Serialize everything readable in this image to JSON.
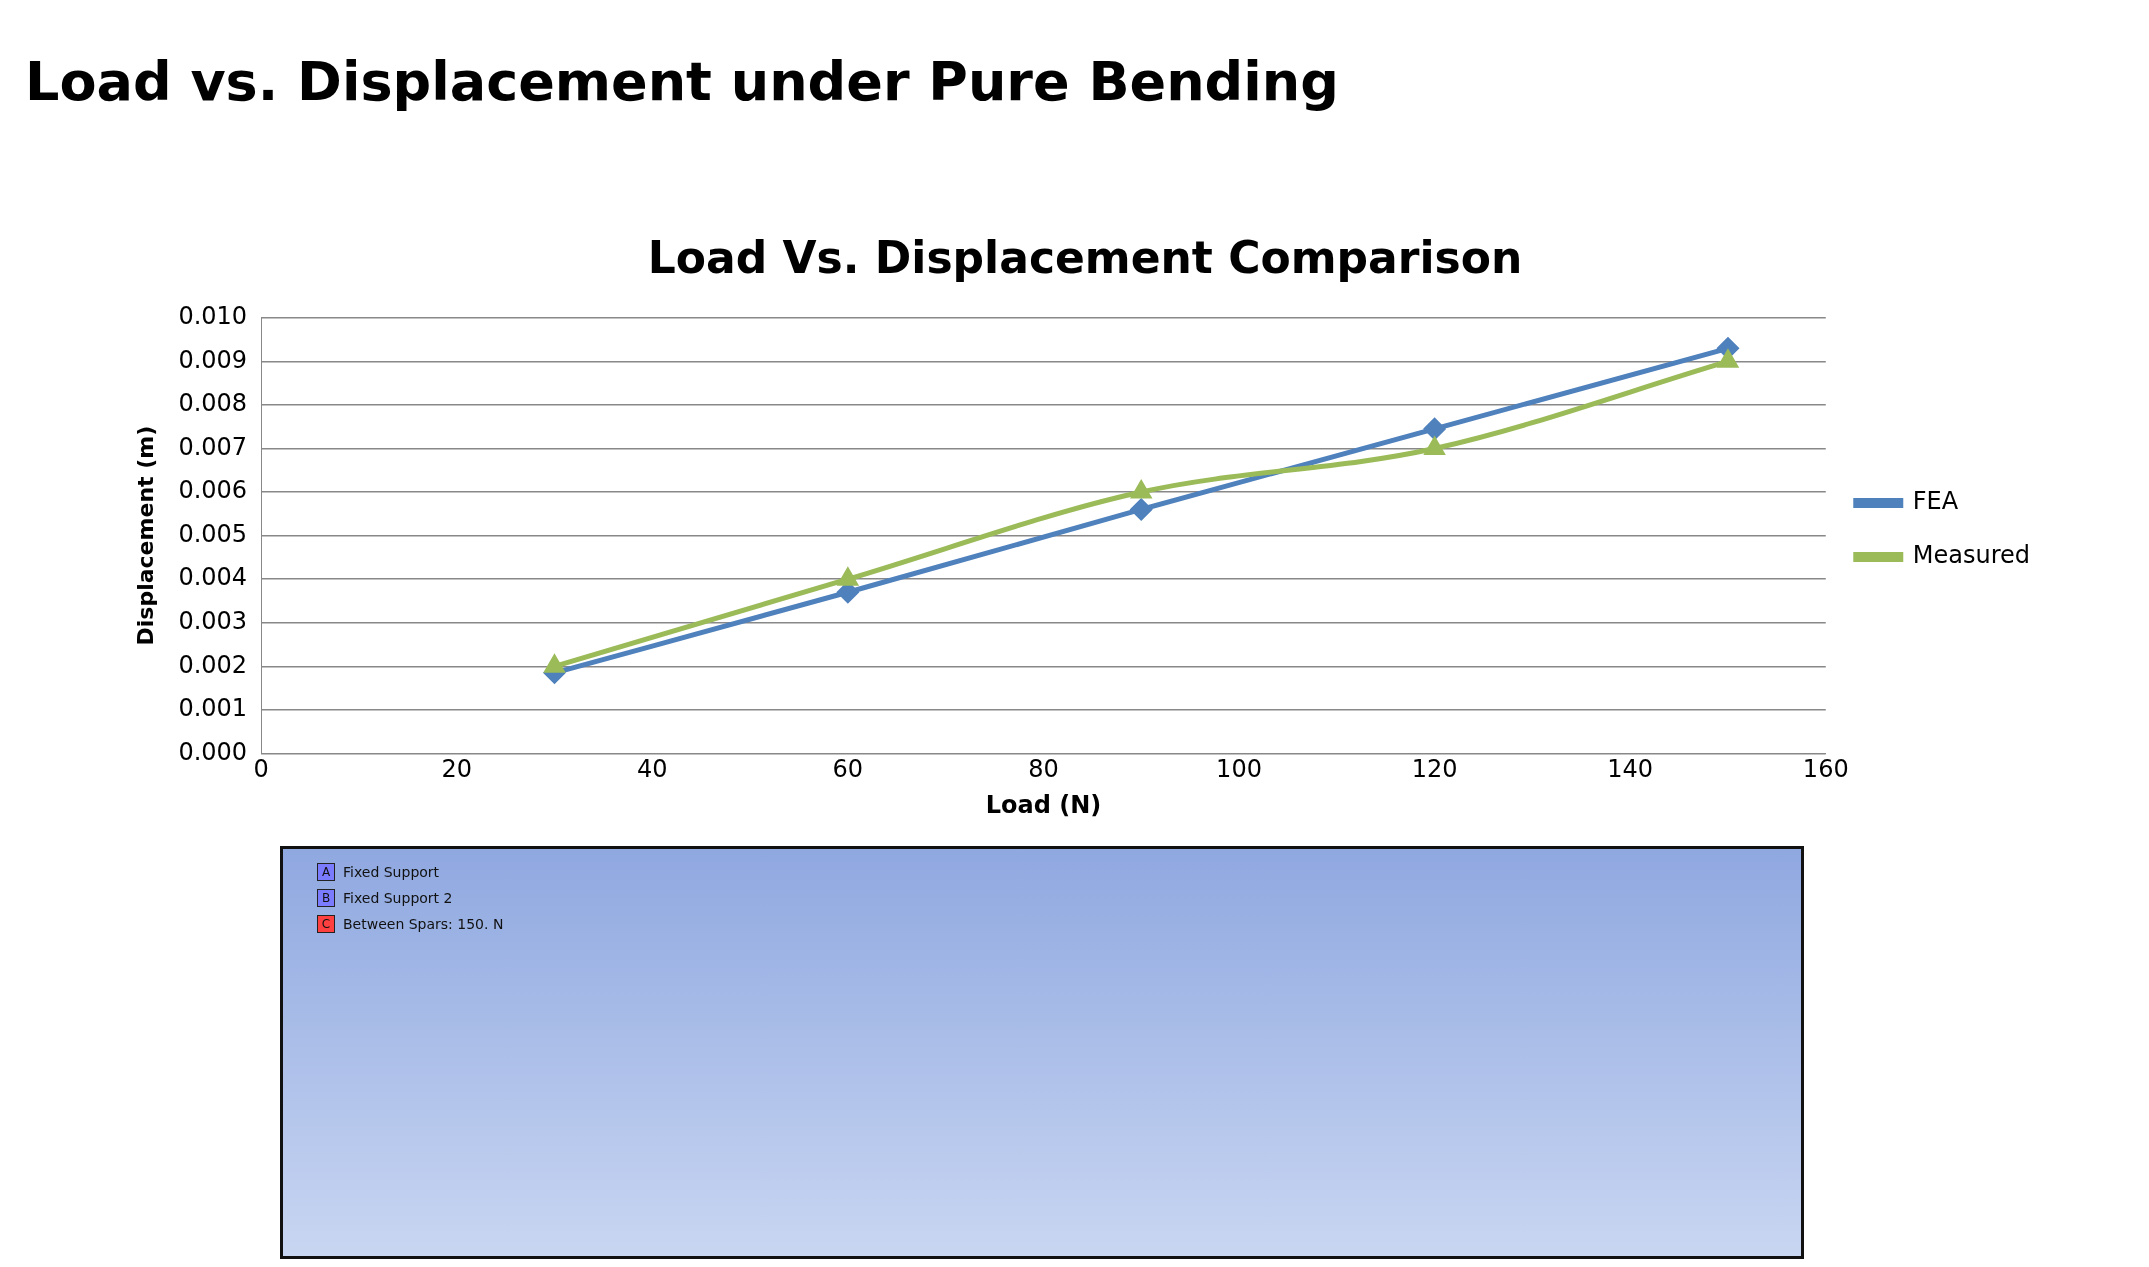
{
  "chart_data": {
    "type": "line",
    "title": "Load vs. Displacement under Pure Bending",
    "subtitle": "Load Vs. Displacement Comparison",
    "xlabel": "Load (N)",
    "ylabel": "Displacement (m)",
    "x": [
      30,
      60,
      90,
      120,
      150
    ],
    "series": [
      {
        "name": "FEA",
        "color": "#4f81bd",
        "values": [
          0.00185,
          0.0037,
          0.0056,
          0.00745,
          0.0093
        ],
        "marker": "diamond"
      },
      {
        "name": "Measured",
        "color": "#9bbb59",
        "values": [
          0.002,
          0.004,
          0.006,
          0.007,
          0.009
        ],
        "marker": "triangle"
      }
    ],
    "xlim": [
      0,
      160
    ],
    "xticks": [
      0,
      20,
      40,
      60,
      80,
      100,
      120,
      140,
      160
    ],
    "ylim": [
      0,
      0.01
    ],
    "yticks": [
      {
        "value": 0,
        "label": "0.000"
      },
      {
        "value": 0.001,
        "label": "0.001"
      },
      {
        "value": 0.002,
        "label": "0.002"
      },
      {
        "value": 0.003,
        "label": "0.003"
      },
      {
        "value": 0.004,
        "label": "0.004"
      },
      {
        "value": 0.005,
        "label": "0.005"
      },
      {
        "value": 0.006,
        "label": "0.006"
      },
      {
        "value": 0.007,
        "label": "0.007"
      },
      {
        "value": 0.008,
        "label": "0.008"
      },
      {
        "value": 0.009,
        "label": "0.009"
      },
      {
        "value": 0.01,
        "label": "0.010"
      }
    ],
    "grid": "y",
    "legend": "right",
    "line_style": "solid",
    "annotations": [
      "A",
      "Fixed Support",
      "B",
      "Fixed Support 2",
      "C",
      "Between Spars: 150. N"
    ]
  }
}
